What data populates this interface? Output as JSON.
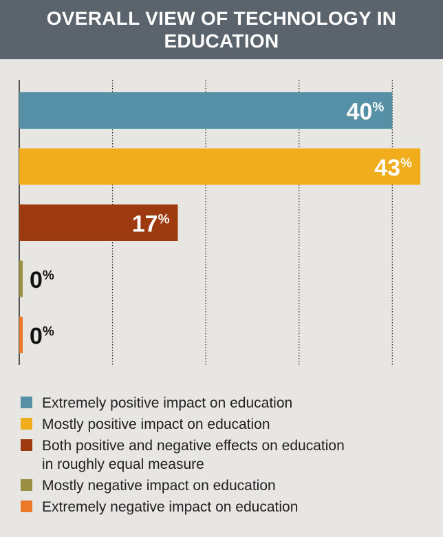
{
  "title": "OVERALL VIEW OF TECHNOLOGY IN EDUCATION",
  "chart_data": {
    "type": "bar",
    "orientation": "horizontal",
    "title": "OVERALL VIEW OF TECHNOLOGY IN EDUCATION",
    "xlabel": "",
    "ylabel": "",
    "xlim": [
      0,
      43
    ],
    "grid": true,
    "legend": "bottom",
    "categories": [
      "Extremely positive impact on education",
      "Mostly positive impact on education",
      "Both positive and negative effects on education in roughly equal measure",
      "Mostly negative impact on education",
      "Extremely negative impact on education"
    ],
    "values": [
      40,
      43,
      17,
      0,
      0
    ],
    "value_labels": [
      "40",
      "43",
      "17",
      "0",
      "0"
    ],
    "value_suffix": "%",
    "colors": [
      "#5690a7",
      "#f1ad1c",
      "#9e3a10",
      "#9a8f42",
      "#ea7a2a"
    ],
    "gridlines": [
      10,
      20,
      30,
      40
    ]
  },
  "legend": {
    "items": [
      {
        "label": "Extremely positive impact on education",
        "color": "#5690a7"
      },
      {
        "label": "Mostly positive impact on education",
        "color": "#f1ad1c"
      },
      {
        "label": "Both positive and negative effects on education in roughly equal measure",
        "color": "#9e3a10"
      },
      {
        "label": "Mostly negative impact on education",
        "color": "#9a8f42"
      },
      {
        "label": "Extremely negative impact on education",
        "color": "#ea7a2a"
      }
    ]
  }
}
